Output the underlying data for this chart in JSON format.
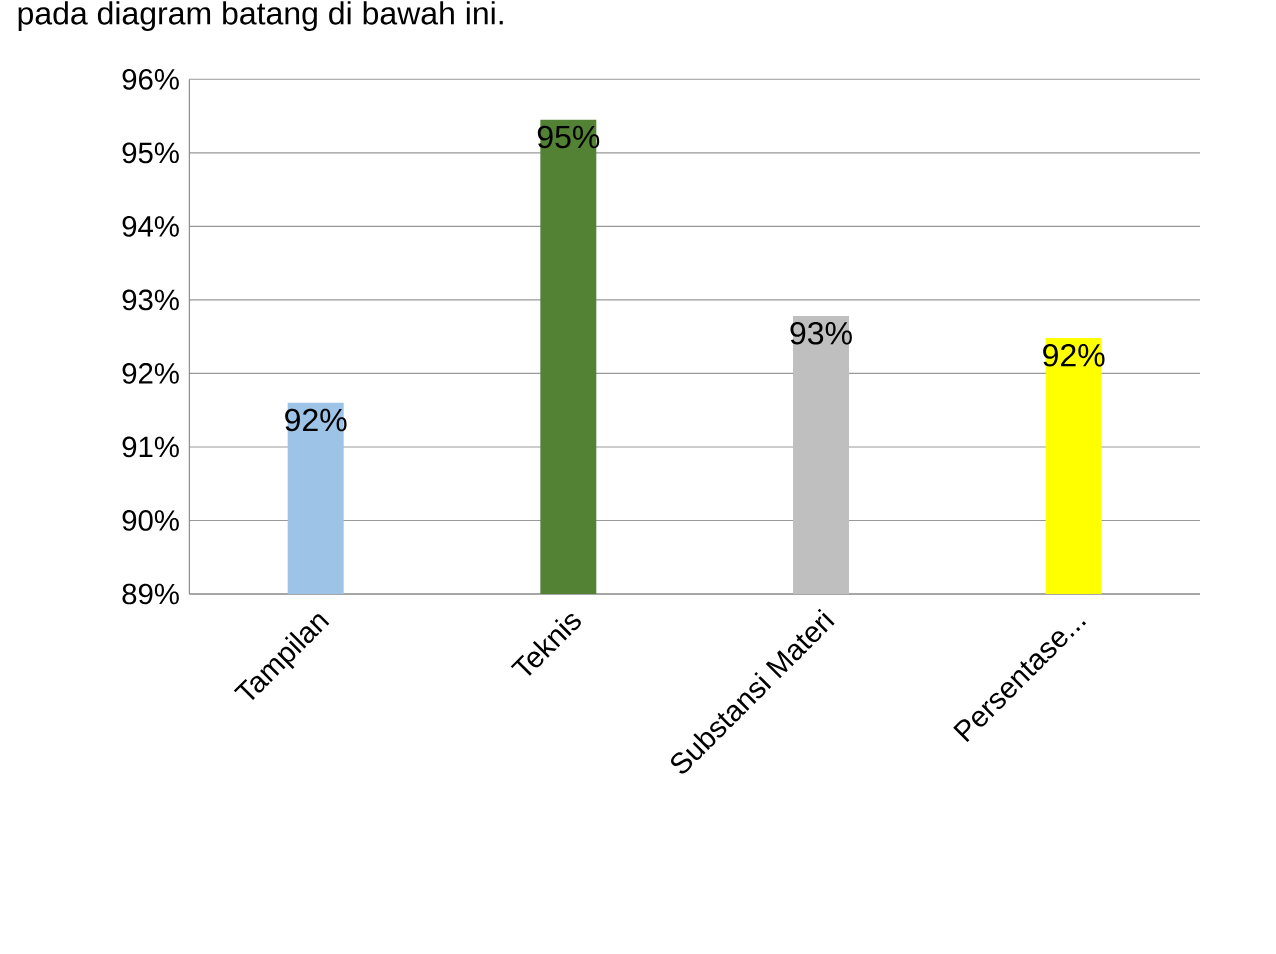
{
  "chart_data": {
    "type": "bar",
    "annotations": [
      "pada diagram batang di bawah ini."
    ],
    "categories": [
      "Tampilan",
      "Teknis",
      "Substansi Materi",
      "Persentase..."
    ],
    "values": [
      91.6,
      95.45,
      92.78,
      92.48
    ],
    "colors": [
      "#9dc3e6",
      "#548235",
      "#bfbfbf",
      "#ffff00"
    ],
    "value_labels": [
      "92%",
      "95%",
      "93%",
      "92%"
    ],
    "ylim": [
      89,
      96
    ],
    "yticks": [
      {
        "value": 89,
        "label": "89%"
      },
      {
        "value": 90,
        "label": "90%"
      },
      {
        "value": 91,
        "label": "91%"
      },
      {
        "value": 92,
        "label": "92%"
      },
      {
        "value": 93,
        "label": "93%"
      },
      {
        "value": 94,
        "label": "94%"
      },
      {
        "value": 95,
        "label": "95%"
      },
      {
        "value": 96,
        "label": "96%"
      }
    ],
    "grid": "y"
  }
}
